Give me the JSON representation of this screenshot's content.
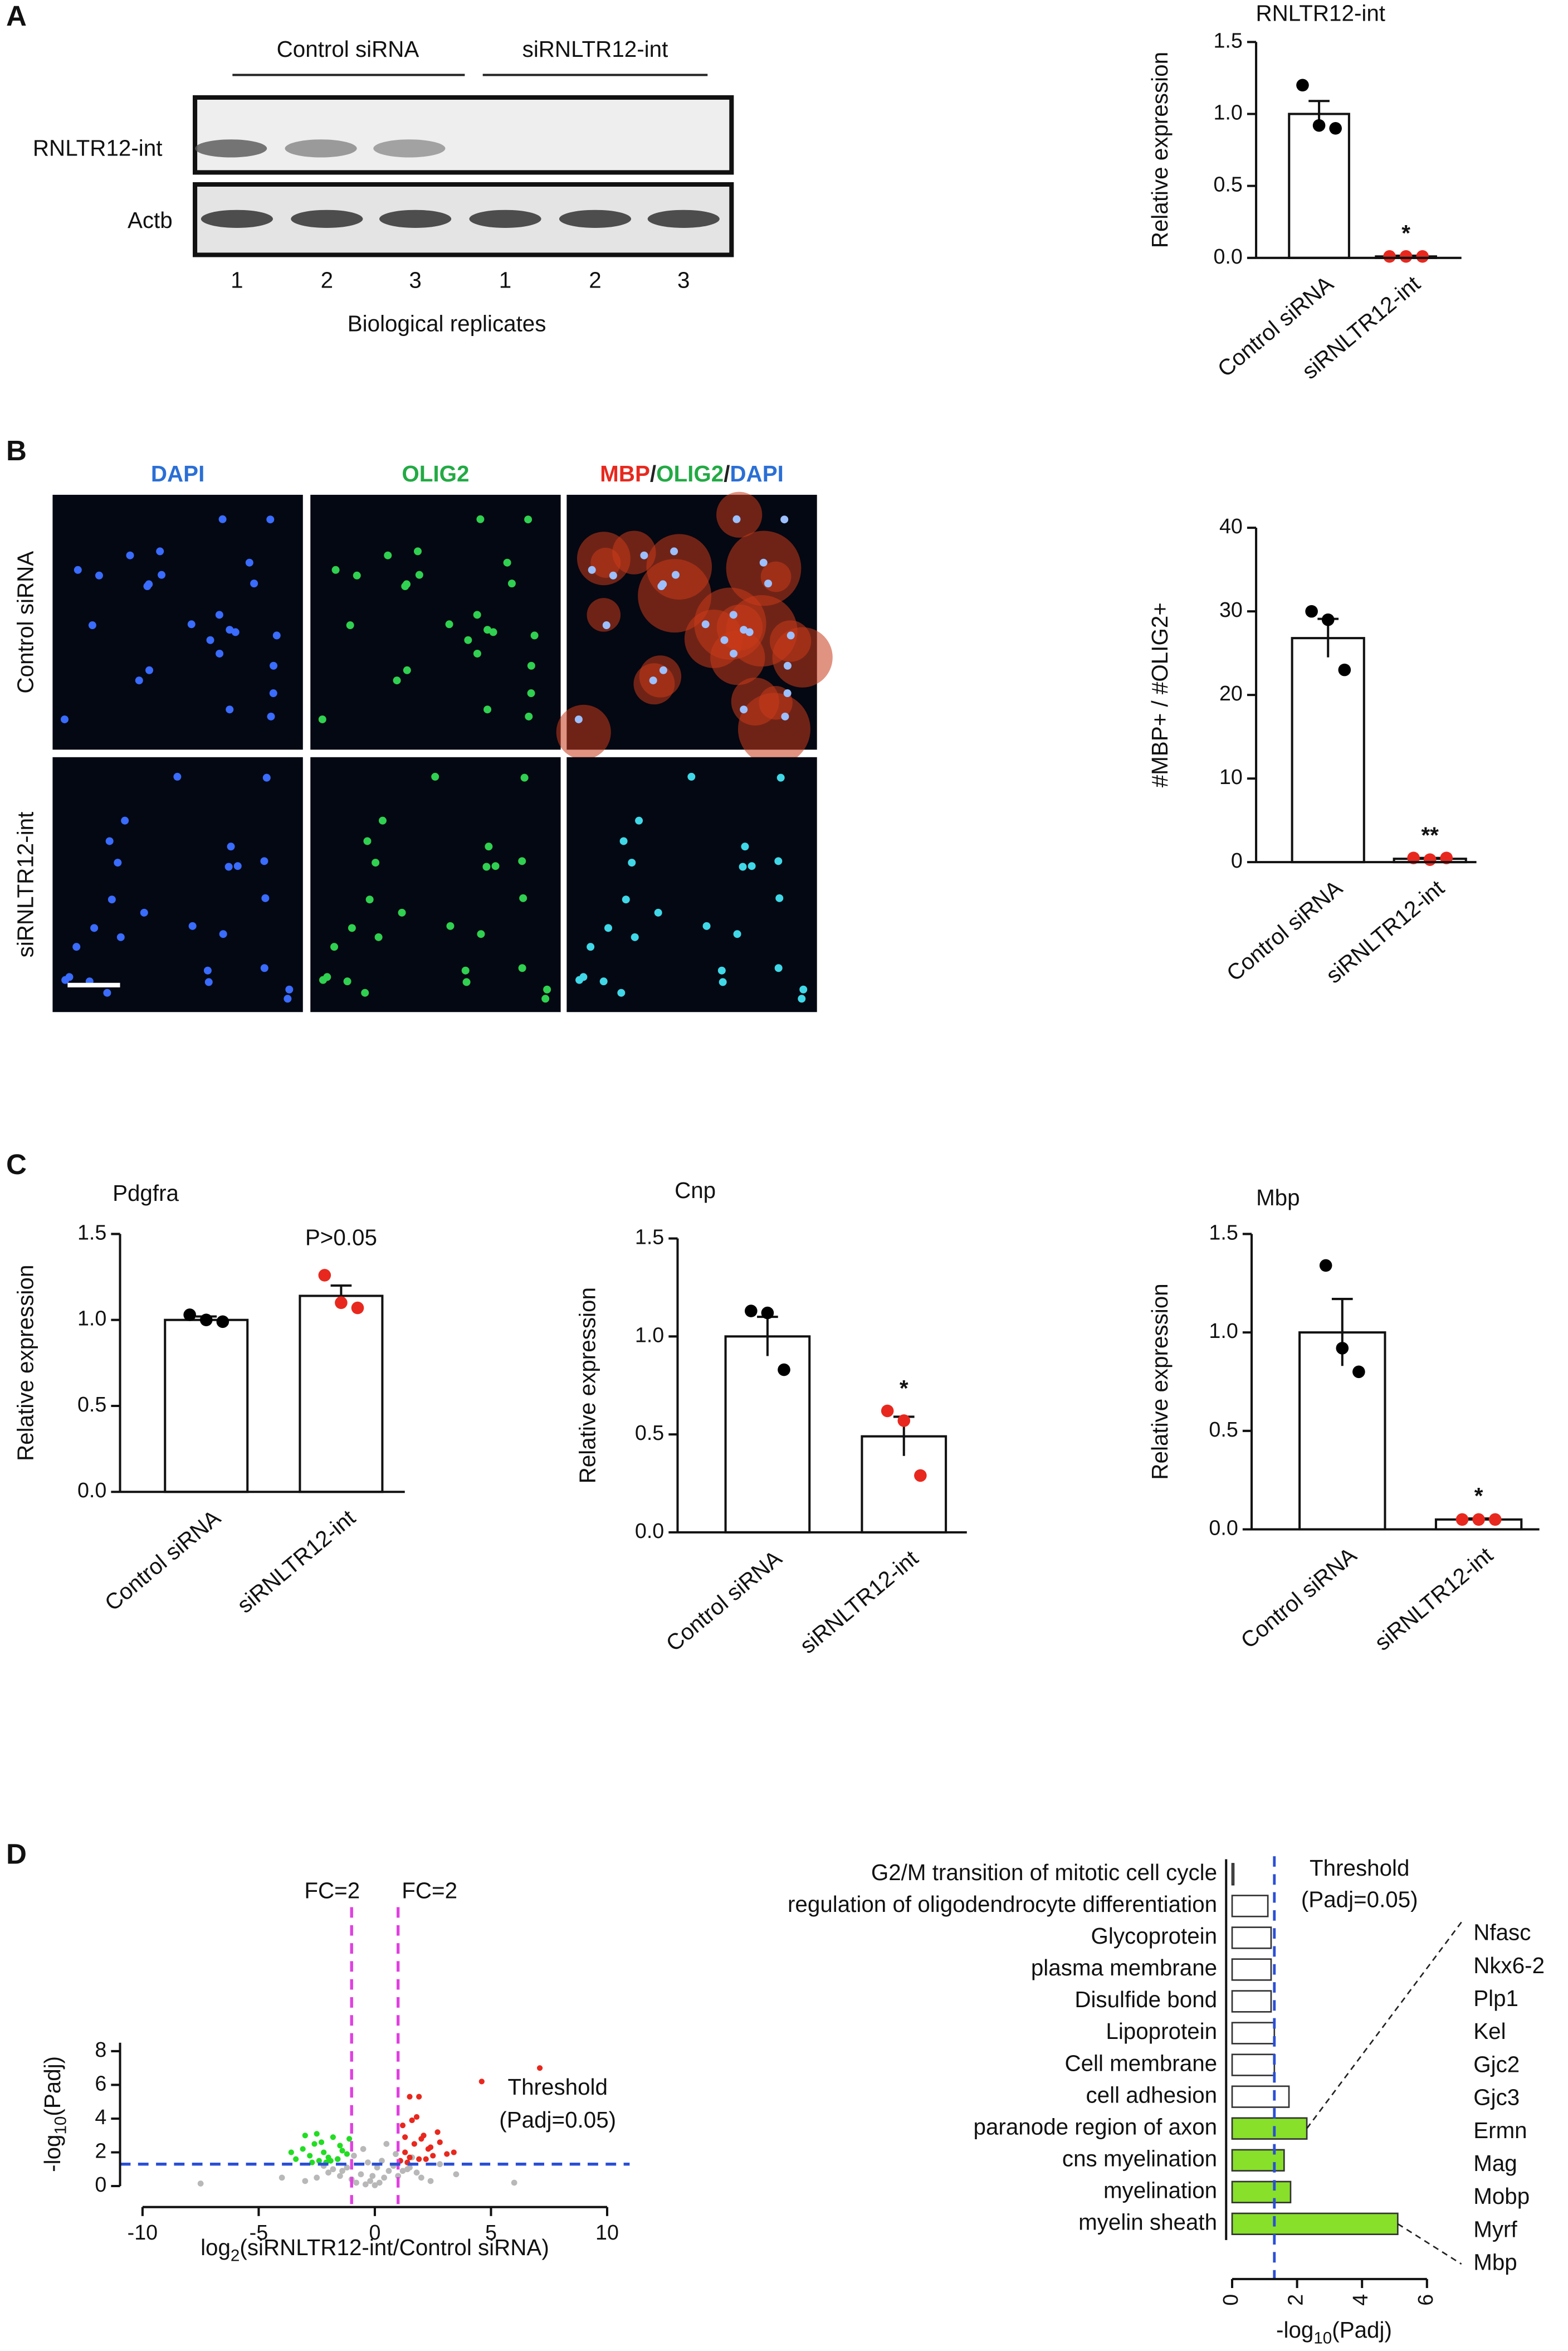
{
  "panels": {
    "a": "A",
    "b": "B",
    "c": "C",
    "d": "D"
  },
  "gel": {
    "groups": [
      "Control siRNA",
      "siRNLTR12-int"
    ],
    "rows": [
      "RNLTR12-int",
      "Actb"
    ],
    "lanes": [
      "1",
      "2",
      "3",
      "1",
      "2",
      "3"
    ],
    "xlabel": "Biological replicates"
  },
  "microscopy": {
    "columns": [
      [
        "DAPI"
      ],
      [
        "OLIG2"
      ],
      [
        "MBP",
        "/",
        "OLIG2",
        "/",
        "DAPI"
      ]
    ],
    "rows": [
      "Control siRNA",
      "siRNLTR12-int"
    ]
  },
  "chart_data": [
    {
      "type": "bar",
      "title": "RNLTR12-int",
      "ylabel": "Relative expression",
      "categories": [
        "Control siRNA",
        "siRNLTR12-int"
      ],
      "values": [
        1,
        0.01
      ],
      "errors": [
        0.09,
        0.005
      ],
      "points": [
        [
          1.2,
          0.92,
          0.9
        ],
        [
          0.01,
          0.01,
          0.01
        ]
      ],
      "point_colors": [
        "#000000",
        "#e8281e"
      ],
      "color": "#ffffff",
      "annotation": "*",
      "ylim": [
        0,
        1.5
      ],
      "yticks": [
        {
          "value": 0,
          "label": "0.0"
        },
        0.5,
        {
          "value": 1,
          "label": "1.0"
        },
        1.5
      ]
    },
    {
      "type": "bar",
      "ylabel": "#MBP+ / #OLIG2+",
      "categories": [
        "Control siRNA",
        "siRNLTR12-int"
      ],
      "values": [
        26.8,
        0.4
      ],
      "errors": [
        2.3,
        0.1
      ],
      "points": [
        [
          30,
          29,
          23
        ],
        [
          0.5,
          0.3,
          0.5
        ]
      ],
      "point_colors": [
        "#000000",
        "#e8281e"
      ],
      "color": "#ffffff",
      "annotation": "**",
      "ylim": [
        0,
        40
      ],
      "yticks": [
        0,
        10,
        20,
        30,
        40
      ]
    },
    {
      "type": "bar",
      "title": "Pdgfra",
      "ylabel": "Relative expression",
      "categories": [
        "Control siRNA",
        "siRNLTR12-int"
      ],
      "values": [
        1,
        1.14
      ],
      "errors": [
        0.02,
        0.06
      ],
      "points": [
        [
          1.03,
          1.0,
          0.99
        ],
        [
          1.26,
          1.1,
          1.07
        ]
      ],
      "point_colors": [
        "#000000",
        "#e8281e"
      ],
      "color": "#ffffff",
      "annotation": "P>0.05",
      "ylim": [
        0,
        1.5
      ],
      "yticks": [
        {
          "value": 0,
          "label": "0.0"
        },
        0.5,
        {
          "value": 1,
          "label": "1.0"
        },
        1.5
      ]
    },
    {
      "type": "bar",
      "title": "Cnp",
      "ylabel": "Relative expression",
      "categories": [
        "Control siRNA",
        "siRNLTR12-int"
      ],
      "values": [
        1,
        0.49
      ],
      "errors": [
        0.1,
        0.1
      ],
      "points": [
        [
          1.13,
          1.12,
          0.83
        ],
        [
          0.62,
          0.57,
          0.29
        ]
      ],
      "point_colors": [
        "#000000",
        "#e8281e"
      ],
      "color": "#ffffff",
      "annotation": "*",
      "ylim": [
        0,
        1.5
      ],
      "yticks": [
        {
          "value": 0,
          "label": "0.0"
        },
        0.5,
        {
          "value": 1,
          "label": "1.0"
        },
        1.5
      ]
    },
    {
      "type": "bar",
      "title": "Mbp",
      "ylabel": "Relative expression",
      "categories": [
        "Control siRNA",
        "siRNLTR12-int"
      ],
      "values": [
        1,
        0.05
      ],
      "errors": [
        0.17,
        0.005
      ],
      "points": [
        [
          1.34,
          0.92,
          0.8
        ],
        [
          0.05,
          0.05,
          0.05
        ]
      ],
      "point_colors": [
        "#000000",
        "#e8281e"
      ],
      "color": "#ffffff",
      "annotation": "*",
      "ylim": [
        0,
        1.5
      ],
      "yticks": [
        {
          "value": 0,
          "label": "0.0"
        },
        0.5,
        {
          "value": 1,
          "label": "1.0"
        },
        1.5
      ]
    },
    {
      "type": "scatter",
      "xlabel": [
        "log",
        "2",
        "(siRNLTR12-int/Control siRNA)"
      ],
      "ylabel": [
        "-log",
        "10",
        "(Padj)"
      ],
      "series": [
        {
          "color": "#b8b8b8",
          "x": [
            -3,
            -2.5,
            -2,
            -1.8,
            -1.5,
            -1.2,
            -1,
            -0.8,
            -0.6,
            -0.4,
            -0.2,
            0,
            0.2,
            0.4,
            0.6,
            0.8,
            1,
            1.2,
            1.5,
            1.8,
            2,
            2.4,
            -2.2,
            -1.6,
            -0.9,
            -0.3,
            0.3,
            0.9,
            1.6,
            -7.5,
            6,
            -4,
            3.5,
            -0.5,
            0.5,
            -1.4,
            1.4,
            0.1,
            -0.1,
            2.8
          ],
          "values": [
            0.3,
            0.5,
            0.8,
            1.0,
            0.6,
            1.1,
            0.4,
            0.2,
            0.7,
            0.1,
            0.3,
            0.05,
            0.2,
            0.5,
            0.9,
            1.2,
            0.6,
            0.9,
            1.1,
            0.8,
            0.5,
            0.3,
            1.2,
            1.6,
            1.8,
            1.4,
            1.5,
            1.9,
            1.7,
            0.15,
            0.2,
            0.5,
            0.7,
            2.2,
            2.5,
            0.9,
            1.0,
            1.1,
            0.6,
            1.3
          ]
        },
        {
          "color": "#22dd22",
          "x": [
            -3.4,
            -3.1,
            -2.8,
            -2.6,
            -2.4,
            -2.2,
            -2.0,
            -1.8,
            -1.6,
            -1.4,
            -1.2,
            -3.0,
            -2.7,
            -2.3,
            -1.9,
            -1.5,
            -2.5,
            -1.1,
            -3.6,
            -2.1
          ],
          "values": [
            1.6,
            2.2,
            1.8,
            2.5,
            1.5,
            2.0,
            1.7,
            2.9,
            1.6,
            2.1,
            1.9,
            3.0,
            1.4,
            2.6,
            1.5,
            2.4,
            3.1,
            2.8,
            2.0,
            1.4
          ]
        },
        {
          "color": "#e8281e",
          "x": [
            1.1,
            1.3,
            1.5,
            1.7,
            1.9,
            2.1,
            2.3,
            2.5,
            2.8,
            3.1,
            1.2,
            1.6,
            2.0,
            2.4,
            2.7,
            1.4,
            1.8,
            3.4,
            4.6,
            7.1,
            1.5,
            1.9,
            2.2,
            1.3
          ],
          "values": [
            1.5,
            2.0,
            1.7,
            2.5,
            1.6,
            3.0,
            2.2,
            1.8,
            2.6,
            1.9,
            3.6,
            3.9,
            2.8,
            2.3,
            3.2,
            1.4,
            4.1,
            2.0,
            6.2,
            7.0,
            5.3,
            5.3,
            1.6,
            2.9
          ]
        }
      ],
      "xlim": [
        -10,
        10
      ],
      "xticks": [
        -10,
        -5,
        0,
        5,
        10
      ],
      "ylim": [
        0,
        8.5
      ],
      "yticks": [
        0,
        2,
        4,
        6,
        8
      ],
      "vlines": [
        -1,
        1
      ],
      "vline_labels": [
        "FC=2",
        "FC=2"
      ],
      "vline_label_colors": [
        "#22bb22",
        "#e8281e"
      ],
      "vline_color": "#e040e0",
      "hline": 1.3,
      "hline_label": [
        "Threshold",
        "(Padj=0.05)"
      ],
      "hline_color": "#2a4fd6"
    },
    {
      "type": "barh",
      "xlabel": [
        "-log",
        "10",
        "(Padj)"
      ],
      "categories": [
        "G2/M transition of mitotic cell cycle",
        "regulation of oligodendrocyte differentiation",
        "Glycoprotein",
        "plasma membrane",
        "Disulfide bond",
        "Lipoprotein",
        "Cell membrane",
        "cell adhesion",
        "paranode region of axon",
        "cns myelination",
        "myelination",
        "myelin sheath"
      ],
      "values": [
        0.05,
        1.1,
        1.2,
        1.2,
        1.2,
        1.3,
        1.3,
        1.75,
        2.3,
        1.6,
        1.8,
        5.1
      ],
      "colors": [
        "#ffffff",
        "#ffffff",
        "#ffffff",
        "#ffffff",
        "#ffffff",
        "#ffffff",
        "#ffffff",
        "#ffffff",
        "#88e02a",
        "#88e02a",
        "#88e02a",
        "#88e02a"
      ],
      "xlim": [
        0,
        6
      ],
      "xticks": [
        0,
        2,
        4,
        6
      ],
      "threshold": 1.3,
      "threshold_label": [
        "Threshold",
        "(Padj=0.05)"
      ],
      "threshold_color": "#2a4fd6",
      "genes": [
        "Nfasc",
        "Nkx6-2",
        "Plp1",
        "Kel",
        "Gjc2",
        "Gjc3",
        "Ermn",
        "Mag",
        "Mobp",
        "Myrf",
        "Mbp"
      ]
    }
  ]
}
